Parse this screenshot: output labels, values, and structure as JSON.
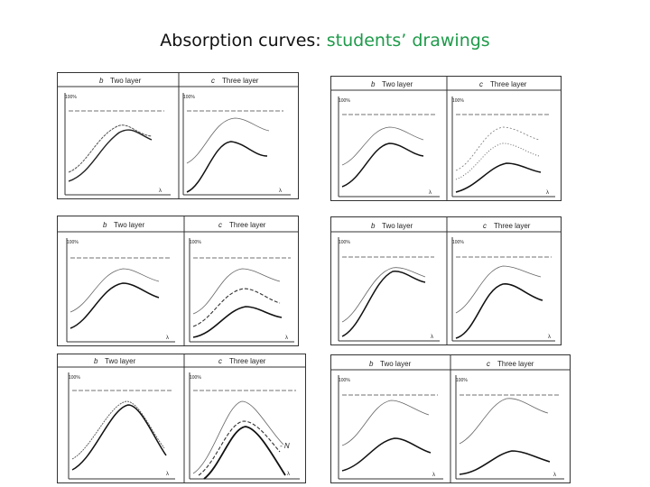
{
  "title": {
    "prefix": "Absorption curves: ",
    "highlight": "students’ drawings",
    "highlight_color": "#1f9a4a"
  },
  "panel_labels": {
    "b_letter": "b",
    "c_letter": "c",
    "two_layer": "Two layer",
    "three_layer": "Three layer",
    "y_marker": "100%",
    "x_marker": "λ"
  },
  "panels": [
    {
      "id": "1",
      "c_curves": 2
    },
    {
      "id": "2",
      "c_curves": 3
    },
    {
      "id": "3",
      "c_curves": 3
    },
    {
      "id": "4",
      "c_curves": 2
    },
    {
      "id": "5",
      "c_curves": 3,
      "annotation": "- N"
    },
    {
      "id": "6",
      "c_curves": 2
    }
  ]
}
